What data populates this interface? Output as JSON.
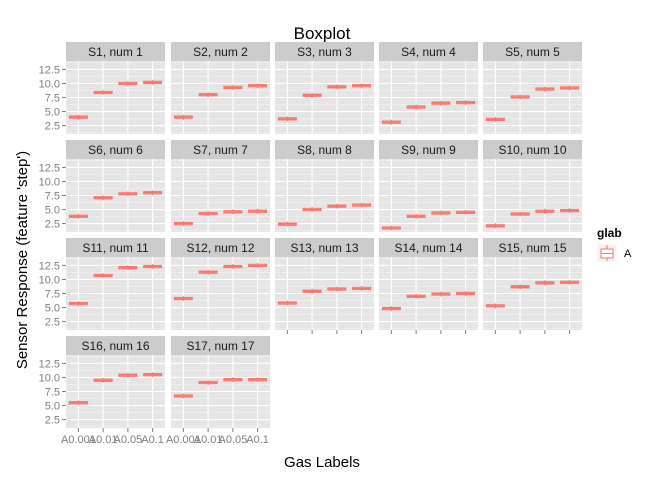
{
  "chart_data": {
    "type": "boxplot",
    "title": "Boxplot",
    "xlabel": "Gas Labels",
    "ylabel": "Sensor Response (feature 'step')",
    "categories": [
      "A0.001",
      "A0.01",
      "A0.05",
      "A0.1"
    ],
    "x_tick_labels": [
      "A0.001",
      "A0.01",
      "A0.05",
      "A0.1"
    ],
    "y_ticks": [
      2.5,
      5.0,
      7.5,
      10.0,
      12.5
    ],
    "y_tick_labels": [
      "2.5",
      "5.0",
      "7.5",
      "10.0",
      "12.5"
    ],
    "ylim": [
      1.0,
      14.0
    ],
    "grid": true,
    "legend": {
      "title": "glab",
      "entries": [
        "A"
      ],
      "placement": "right",
      "color": "#F8766D"
    },
    "box_color": "#F8766D",
    "panel_background": "#E5E5E5",
    "strip_background": "#CCCCCC",
    "facets": [
      {
        "label": "S1, num 1",
        "medians": [
          4.0,
          8.4,
          10.0,
          10.2
        ]
      },
      {
        "label": "S2, num 2",
        "medians": [
          4.0,
          8.0,
          9.3,
          9.6
        ]
      },
      {
        "label": "S3, num 3",
        "medians": [
          3.7,
          7.9,
          9.4,
          9.6
        ]
      },
      {
        "label": "S4, num 4",
        "medians": [
          3.1,
          5.8,
          6.5,
          6.6
        ]
      },
      {
        "label": "S5, num 5",
        "medians": [
          3.6,
          7.6,
          9.0,
          9.2
        ]
      },
      {
        "label": "S6, num 6",
        "medians": [
          3.8,
          7.1,
          7.8,
          8.0
        ]
      },
      {
        "label": "S7, num 7",
        "medians": [
          2.5,
          4.3,
          4.6,
          4.7
        ]
      },
      {
        "label": "S8, num 8",
        "medians": [
          2.4,
          5.0,
          5.6,
          5.8
        ]
      },
      {
        "label": "S9, num 9",
        "medians": [
          1.7,
          3.8,
          4.4,
          4.5
        ]
      },
      {
        "label": "S10, num 10",
        "medians": [
          2.1,
          4.2,
          4.7,
          4.8
        ]
      },
      {
        "label": "S11, num 11",
        "medians": [
          5.7,
          10.7,
          12.1,
          12.3
        ]
      },
      {
        "label": "S12, num 12",
        "medians": [
          6.6,
          11.3,
          12.3,
          12.5
        ]
      },
      {
        "label": "S13, num 13",
        "medians": [
          5.8,
          7.9,
          8.3,
          8.4
        ]
      },
      {
        "label": "S14, num 14",
        "medians": [
          4.8,
          7.0,
          7.4,
          7.5
        ]
      },
      {
        "label": "S15, num 15",
        "medians": [
          5.3,
          8.7,
          9.4,
          9.5
        ]
      },
      {
        "label": "S16, num 16",
        "medians": [
          5.5,
          9.5,
          10.4,
          10.5
        ]
      },
      {
        "label": "S17, num 17",
        "medians": [
          6.7,
          9.1,
          9.6,
          9.6
        ]
      }
    ]
  }
}
